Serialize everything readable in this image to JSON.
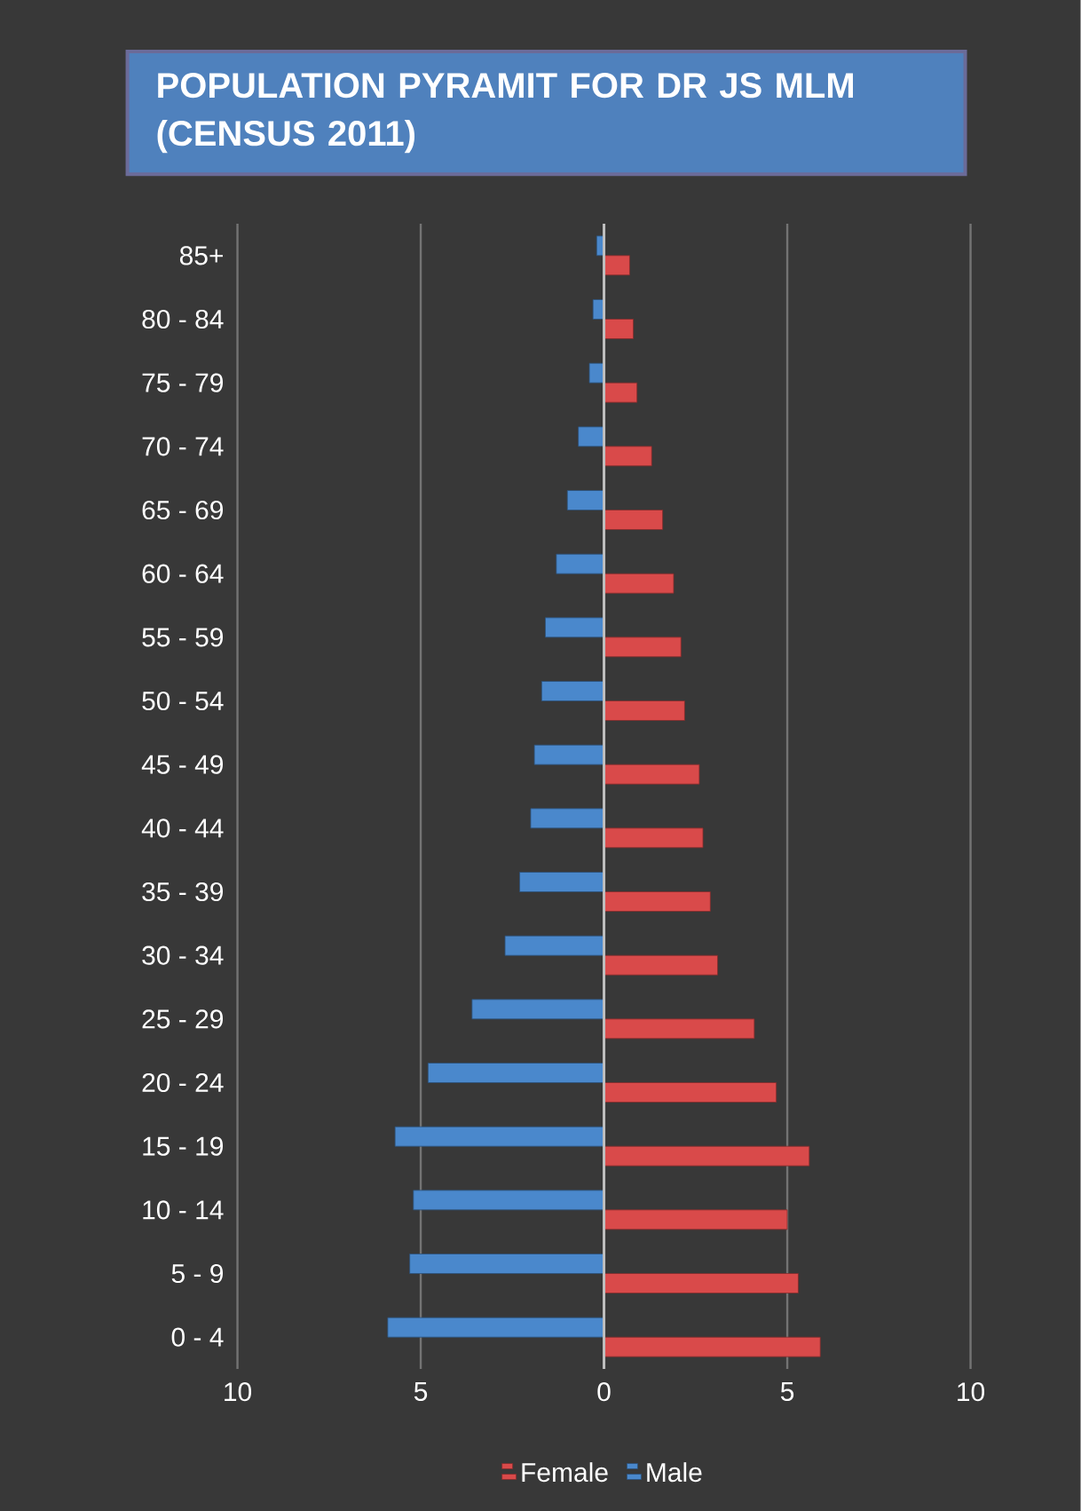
{
  "chart_data": {
    "type": "bar",
    "orientation": "horizontal",
    "title": "POPULATION PYRAMIT FOR DR JS MLM (CENSUS 2011)",
    "categories": [
      "85+",
      "80 - 84",
      "75 - 79",
      "70 - 74",
      "65 - 69",
      "60 - 64",
      "55 - 59",
      "50 - 54",
      "45 - 49",
      "40 - 44",
      "35 - 39",
      "30 - 34",
      "25 - 29",
      "20 - 24",
      "15 - 19",
      "10 - 14",
      "5 - 9",
      "0 - 4"
    ],
    "series": [
      {
        "name": "Female",
        "color": "#d94a4a",
        "values": [
          0.7,
          0.8,
          0.9,
          1.3,
          1.6,
          1.9,
          2.1,
          2.2,
          2.6,
          2.7,
          2.9,
          3.1,
          4.1,
          4.7,
          5.6,
          5.0,
          5.3,
          5.9
        ]
      },
      {
        "name": "Male",
        "color": "#4a88cc",
        "values": [
          -0.2,
          -0.3,
          -0.4,
          -0.7,
          -1.0,
          -1.3,
          -1.6,
          -1.7,
          -1.9,
          -2.0,
          -2.3,
          -2.7,
          -3.6,
          -4.8,
          -5.7,
          -5.2,
          -5.3,
          -5.9
        ]
      }
    ],
    "xlim": [
      -10,
      10
    ],
    "xticks": [
      {
        "value": -10,
        "label": "10"
      },
      {
        "value": -5,
        "label": "5"
      },
      0,
      5,
      10
    ],
    "grid": "x",
    "legend": "bottom"
  }
}
